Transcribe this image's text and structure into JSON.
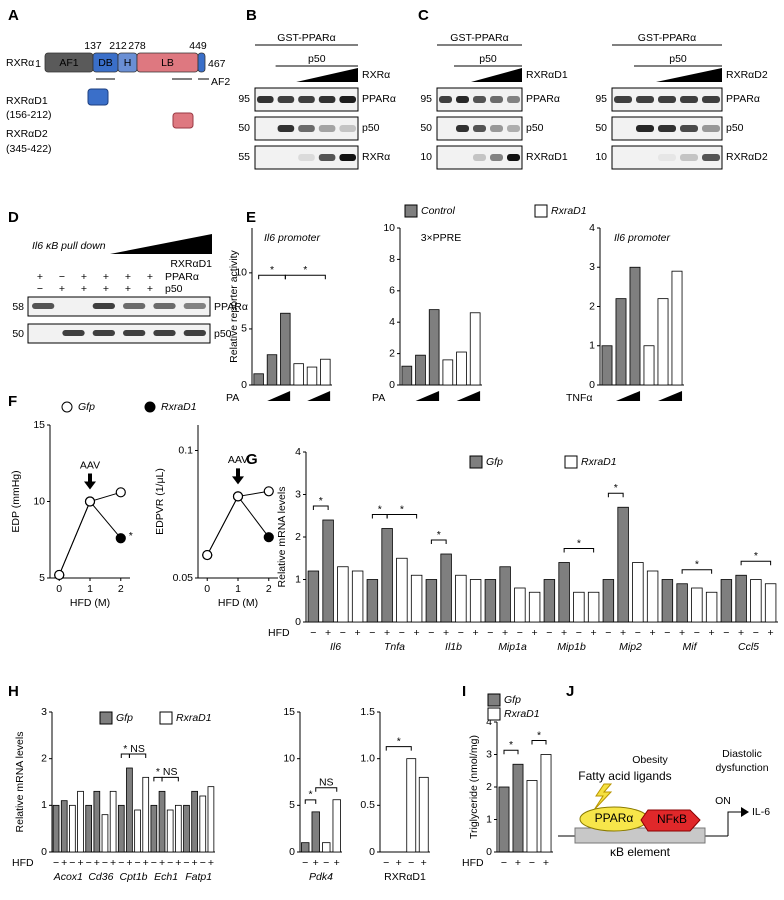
{
  "panel_labels": [
    "A",
    "B",
    "C",
    "D",
    "E",
    "F",
    "G",
    "H",
    "I",
    "J"
  ],
  "panel_a": {
    "protein": "RXRα",
    "positions": [
      1,
      137,
      212,
      278,
      449,
      467
    ],
    "domains": [
      "AF1",
      "DB",
      "H",
      "LB",
      "AF2"
    ],
    "constructs": [
      {
        "name": "RXRαD1",
        "range": "(156-212)"
      },
      {
        "name": "RXRαD2",
        "range": "(345-422)"
      }
    ]
  },
  "blots": [
    {
      "header": "GST-PPARα",
      "treatment": "p50",
      "titrant": "RXRα",
      "sizes": [
        95,
        50,
        55
      ],
      "bands": [
        "PPARα",
        "p50",
        "RXRα"
      ]
    },
    {
      "header": "GST-PPARα",
      "treatment": "p50",
      "titrant": "RXRαD1",
      "sizes": [
        95,
        50,
        10
      ],
      "bands": [
        "PPARα",
        "p50",
        "RXRαD1"
      ]
    },
    {
      "header": "GST-PPARα",
      "treatment": "p50",
      "titrant": "RXRαD2",
      "sizes": [
        95,
        50,
        10
      ],
      "bands": [
        "PPARα",
        "p50",
        "RXRαD2"
      ]
    }
  ],
  "pull_down": {
    "title": "Il6 κB pull down",
    "titrant": "RXRαD1",
    "rows": [
      {
        "name": "PPARα",
        "signs": [
          "+",
          "−",
          "+",
          "+",
          "+",
          "+"
        ]
      },
      {
        "name": "p50",
        "signs": [
          "−",
          "+",
          "+",
          "+",
          "+",
          "+"
        ]
      }
    ],
    "sizes": [
      58,
      50
    ],
    "bands": [
      "PPARα",
      "p50"
    ]
  },
  "chart_data": [
    {
      "type": "bar",
      "subtitle": "Il6 promoter",
      "y_label": "Relative reporter activity",
      "x_label": "PA",
      "ylim": [
        0,
        14
      ],
      "yticks": [
        0,
        5,
        10
      ],
      "series": [
        {
          "name": "Control",
          "color": "#7f7f7f",
          "values": [
            1.0,
            2.7,
            6.4,
            null,
            null,
            null
          ]
        },
        {
          "name": "RxraD1",
          "color": "#ffffff",
          "values": [
            null,
            null,
            null,
            1.9,
            1.6,
            2.3
          ]
        }
      ],
      "annotations": [
        "*",
        "*"
      ]
    },
    {
      "type": "bar",
      "subtitle": "3×PPRE",
      "x_label": "PA",
      "ylim": [
        0,
        10
      ],
      "yticks": [
        0,
        2,
        4,
        6,
        8,
        10
      ],
      "series": [
        {
          "color": "#7f7f7f",
          "values": [
            1.2,
            1.9,
            4.8,
            null,
            null,
            null
          ]
        },
        {
          "color": "#ffffff",
          "values": [
            null,
            null,
            null,
            1.6,
            2.1,
            4.6
          ]
        }
      ]
    },
    {
      "type": "bar",
      "subtitle": "Il6 promoter",
      "x_label": "TNFα",
      "ylim": [
        0,
        4
      ],
      "yticks": [
        0,
        1,
        2,
        3,
        4
      ],
      "series": [
        {
          "color": "#7f7f7f",
          "values": [
            1.0,
            2.2,
            3.0,
            null,
            null,
            null
          ]
        },
        {
          "color": "#ffffff",
          "values": [
            null,
            null,
            null,
            1.0,
            2.2,
            2.9
          ]
        }
      ]
    },
    {
      "type": "line",
      "x_label": "HFD (M)",
      "y_label": "EDP (mmHg)",
      "x": [
        0,
        1,
        2
      ],
      "xlim": [
        -0.3,
        2.3
      ],
      "xticks": [
        0,
        1,
        2
      ],
      "ylim": [
        5,
        15
      ],
      "yticks": [
        5,
        10,
        15
      ],
      "series": [
        {
          "name": "Gfp",
          "color": "#ffffff",
          "values": [
            5.2,
            10.0,
            10.6
          ]
        },
        {
          "name": "RxraD1",
          "color": "#000000",
          "values": [
            5.2,
            10.0,
            7.6
          ]
        }
      ],
      "annotations": [
        "AAV",
        "*"
      ]
    },
    {
      "type": "line",
      "x_label": "HFD (M)",
      "y_label": "EDPVR (1/μL)",
      "x": [
        0,
        1,
        2
      ],
      "xlim": [
        -0.3,
        2.3
      ],
      "xticks": [
        0,
        1,
        2
      ],
      "ylim": [
        0.05,
        0.11
      ],
      "yticks": [
        0.05,
        0.1
      ],
      "series": [
        {
          "color": "#ffffff",
          "values": [
            0.059,
            0.082,
            0.084
          ]
        },
        {
          "color": "#000000",
          "values": [
            0.059,
            0.082,
            0.066
          ]
        }
      ],
      "annotations": [
        "AAV"
      ]
    },
    {
      "type": "bar",
      "y_label": "Relative mRNA levels",
      "x_label": "HFD",
      "ylim": [
        0,
        4
      ],
      "yticks": [
        0,
        1,
        2,
        3,
        4
      ],
      "groups": [
        "Il6",
        "Tnfa",
        "Il1b",
        "Mip1a",
        "Mip1b",
        "Mip2",
        "Mif",
        "Ccl5"
      ],
      "categories": [
        "−",
        "+",
        "−",
        "+",
        "−",
        "+",
        "−",
        "+",
        "−",
        "+",
        "−",
        "+",
        "−",
        "+",
        "−",
        "+",
        "−",
        "+",
        "−",
        "+",
        "−",
        "+",
        "−",
        "+",
        "−",
        "+",
        "−",
        "+",
        "−",
        "+",
        "−",
        "+"
      ],
      "series": [
        {
          "name": "Gfp",
          "color": "#7f7f7f",
          "values": [
            1.2,
            2.4,
            null,
            null,
            1.0,
            2.2,
            null,
            null,
            1.0,
            1.6,
            null,
            null,
            1.0,
            1.3,
            null,
            null,
            1.0,
            1.4,
            null,
            null,
            1.0,
            2.7,
            null,
            null,
            1.0,
            0.9,
            null,
            null,
            1.0,
            1.1,
            null,
            null
          ]
        },
        {
          "name": "RxraD1",
          "color": "#ffffff",
          "values": [
            null,
            null,
            1.3,
            1.2,
            null,
            null,
            1.5,
            1.1,
            null,
            null,
            1.1,
            1.0,
            null,
            null,
            0.8,
            0.7,
            null,
            null,
            0.7,
            0.7,
            null,
            null,
            1.4,
            1.2,
            null,
            null,
            0.8,
            0.7,
            null,
            null,
            1.0,
            0.9
          ]
        }
      ],
      "annotations": [
        "*",
        "*",
        "*",
        "*",
        "*",
        "*",
        "*",
        "*"
      ]
    },
    {
      "type": "bar",
      "y_label": "Relative mRNA levels",
      "x_label": "HFD",
      "ylim": [
        0,
        3
      ],
      "yticks": [
        0,
        1,
        2,
        3
      ],
      "groups": [
        "Acox1",
        "Cd36",
        "Cpt1b",
        "Ech1",
        "Fatp1"
      ],
      "categories": [
        "−",
        "+",
        "−",
        "+",
        "−",
        "+",
        "−",
        "+",
        "−",
        "+",
        "−",
        "+",
        "−",
        "+",
        "−",
        "+",
        "−",
        "+",
        "−",
        "+"
      ],
      "series": [
        {
          "name": "Gfp",
          "color": "#7f7f7f",
          "values": [
            1.0,
            1.1,
            null,
            null,
            1.0,
            1.3,
            null,
            null,
            1.0,
            1.8,
            null,
            null,
            1.0,
            1.3,
            null,
            null,
            1.0,
            1.3,
            null,
            null
          ]
        },
        {
          "name": "RxraD1",
          "color": "#ffffff",
          "values": [
            null,
            null,
            1.0,
            1.3,
            null,
            null,
            0.8,
            1.3,
            null,
            null,
            0.9,
            1.6,
            null,
            null,
            0.9,
            1.0,
            null,
            null,
            1.2,
            1.4
          ]
        }
      ],
      "annotations": [
        "*",
        "NS",
        "*",
        "NS"
      ]
    },
    {
      "type": "bar",
      "ylim": [
        0,
        15
      ],
      "yticks": [
        0,
        5,
        10,
        15
      ],
      "groups": [
        "Pdk4"
      ],
      "categories": [
        "−",
        "+",
        "−",
        "+"
      ],
      "series": [
        {
          "color": "#7f7f7f",
          "values": [
            1.0,
            4.3,
            null,
            null
          ]
        },
        {
          "color": "#ffffff",
          "values": [
            null,
            null,
            1.0,
            5.6
          ]
        }
      ],
      "annotations": [
        "*",
        "NS"
      ]
    },
    {
      "type": "bar",
      "ylim": [
        0,
        1.5
      ],
      "yticks": [
        0,
        0.5,
        {
          "value": 1,
          "label": "1.0"
        },
        1.5
      ],
      "groups": [
        "RXRαD1"
      ],
      "categories": [
        "−",
        "+",
        "−",
        "+"
      ],
      "series": [
        {
          "color": "#7f7f7f",
          "values": [
            0.0,
            0.0,
            null,
            null
          ]
        },
        {
          "color": "#ffffff",
          "values": [
            null,
            null,
            1.0,
            0.8
          ]
        }
      ],
      "annotations": [
        "*"
      ]
    },
    {
      "type": "bar",
      "y_label": "Triglyceride (nmol/mg)",
      "x_label": "HFD",
      "ylim": [
        0,
        4
      ],
      "yticks": [
        0,
        1,
        2,
        3,
        4
      ],
      "categories": [
        "−",
        "+",
        "−",
        "+"
      ],
      "series": [
        {
          "name": "Gfp",
          "color": "#7f7f7f",
          "values": [
            2.0,
            2.7,
            null,
            null
          ]
        },
        {
          "name": "RxraD1",
          "color": "#ffffff",
          "values": [
            null,
            null,
            2.2,
            3.0
          ]
        }
      ],
      "annotations": [
        "*",
        "*"
      ]
    }
  ],
  "diagram": {
    "trigger": "Obesity",
    "ligands": "Fatty acid ligands",
    "outcome": [
      "Diastolic",
      "dysfunction"
    ],
    "receptor": "PPARα",
    "factor": "NFκB",
    "element": "κB element",
    "switch": "ON",
    "gene": "IL-6"
  }
}
